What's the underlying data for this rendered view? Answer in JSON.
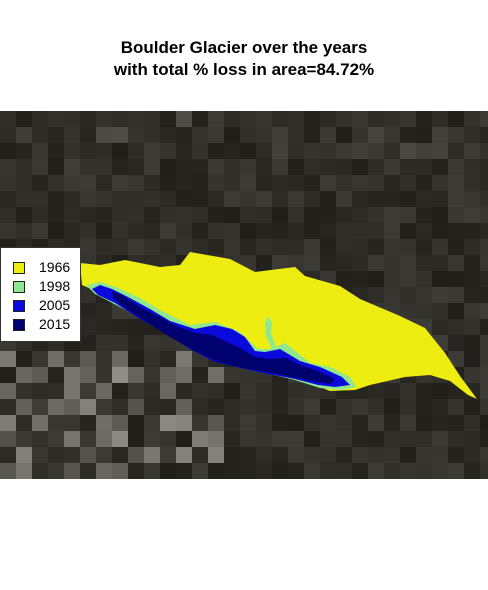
{
  "title": {
    "line1": "Boulder Glacier over the years",
    "line2": "with total % loss in area=84.72%"
  },
  "legend": {
    "items": [
      {
        "label": "1966",
        "color": "#eded12"
      },
      {
        "label": "1998",
        "color": "#8fe88f"
      },
      {
        "label": "2005",
        "color": "#0a0adc"
      },
      {
        "label": "2015",
        "color": "#00006e"
      }
    ]
  },
  "map": {
    "basemap": "dark satellite imagery (mountain terrain)",
    "layers": [
      "1966",
      "1998",
      "2005",
      "2015"
    ]
  }
}
